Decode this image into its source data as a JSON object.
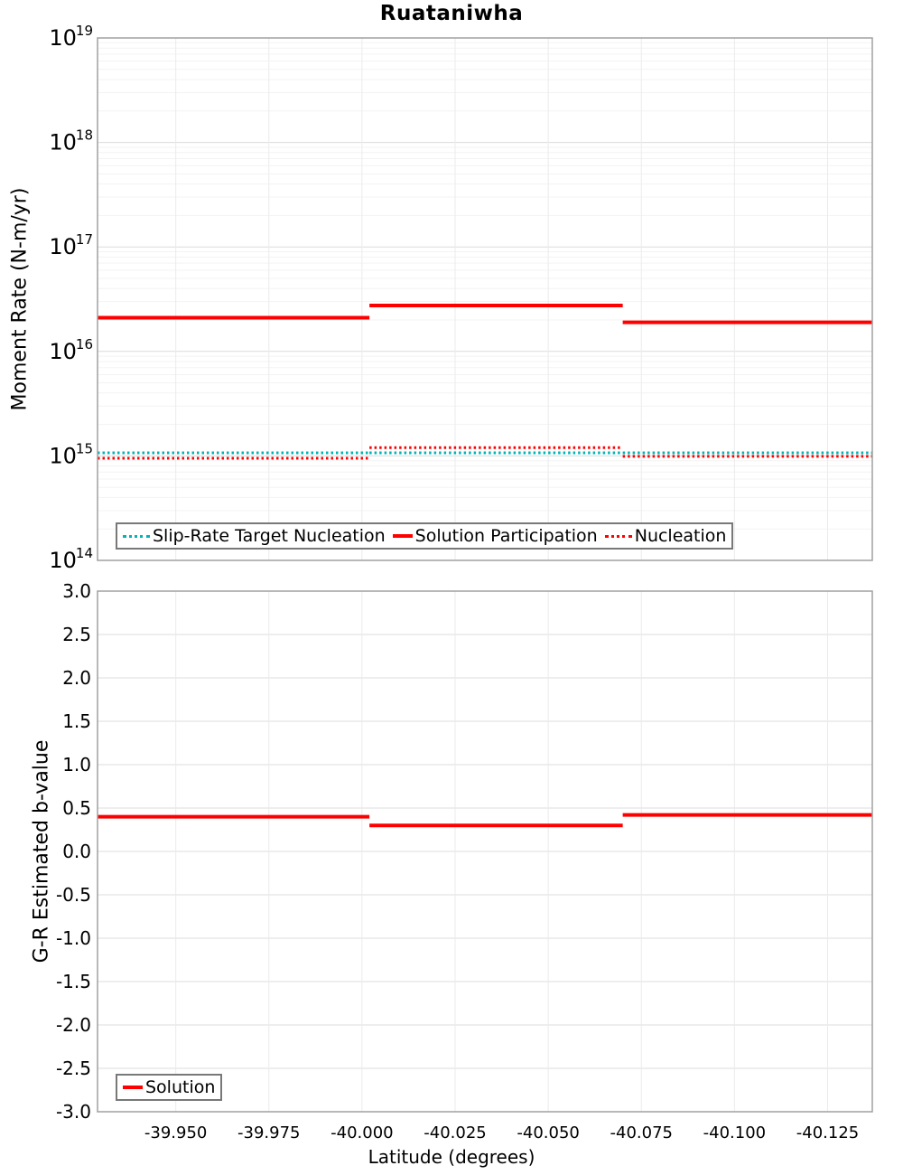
{
  "xaxis": {
    "label": "Latitude (degrees)",
    "lim": [
      -39.929,
      -40.137
    ],
    "ticks": [
      {
        "value": -39.95,
        "label": "-39.950"
      },
      {
        "value": -39.975,
        "label": "-39.975"
      },
      {
        "value": -40.0,
        "label": "-40.000"
      },
      {
        "value": -40.025,
        "label": "-40.025"
      },
      {
        "value": -40.05,
        "label": "-40.050"
      },
      {
        "value": -40.075,
        "label": "-40.075"
      },
      {
        "value": -40.1,
        "label": "-40.100"
      },
      {
        "value": -40.125,
        "label": "-40.125"
      }
    ]
  },
  "chart_data": [
    {
      "type": "line",
      "name": "moment-rate-plot",
      "title": "Ruataniwha",
      "ylabel": "Moment Rate (N-m/yr)",
      "yscale": "log",
      "ylim": [
        100000000000000.0,
        1e+19
      ],
      "ytick_exponents": [
        19,
        18,
        17,
        16,
        15,
        14
      ],
      "grid": true,
      "legend_position": "bottom-left",
      "x_segment_bounds": [
        -39.929,
        -40.002,
        -40.07,
        -40.137
      ],
      "series": [
        {
          "name": "Slip-Rate Target Nucleation",
          "color": "#00b4b4",
          "style": "dotted",
          "values": [
            1070000000000000.0,
            1070000000000000.0,
            1070000000000000.0
          ]
        },
        {
          "name": "Solution Participation",
          "color": "#ff0000",
          "style": "solid",
          "values": [
            2.1e+16,
            2.75e+16,
            1.9e+16
          ]
        },
        {
          "name": "Nucleation",
          "color": "#ff0000",
          "style": "dotted",
          "values": [
            950000000000000.0,
            1200000000000000.0,
            990000000000000.0
          ]
        }
      ]
    },
    {
      "type": "line",
      "name": "b-value-plot",
      "ylabel": "G-R Estimated b-value",
      "yscale": "linear",
      "ylim": [
        -3.0,
        3.0
      ],
      "yticks": [
        {
          "value": 3.0,
          "label": "3.0"
        },
        {
          "value": 2.5,
          "label": "2.5"
        },
        {
          "value": 2.0,
          "label": "2.0"
        },
        {
          "value": 1.5,
          "label": "1.5"
        },
        {
          "value": 1.0,
          "label": "1.0"
        },
        {
          "value": 0.5,
          "label": "0.5"
        },
        {
          "value": 0.0,
          "label": "0.0"
        },
        {
          "value": -0.5,
          "label": "-0.5"
        },
        {
          "value": -1.0,
          "label": "-1.0"
        },
        {
          "value": -1.5,
          "label": "-1.5"
        },
        {
          "value": -2.0,
          "label": "-2.0"
        },
        {
          "value": -2.5,
          "label": "-2.5"
        },
        {
          "value": -3.0,
          "label": "-3.0"
        }
      ],
      "grid": true,
      "legend_position": "bottom-left",
      "x_segment_bounds": [
        -39.929,
        -40.002,
        -40.07,
        -40.137
      ],
      "series": [
        {
          "name": "Solution",
          "color": "#ff0000",
          "style": "solid",
          "values": [
            0.4,
            0.3,
            0.42
          ]
        }
      ]
    }
  ],
  "colors": {
    "plot_border": "#a0a0a0",
    "grid_major": "#dcdcdc",
    "grid_minor": "#f3f3f3",
    "grid_vertical": "#ebebeb",
    "legend_border": "#787878"
  }
}
